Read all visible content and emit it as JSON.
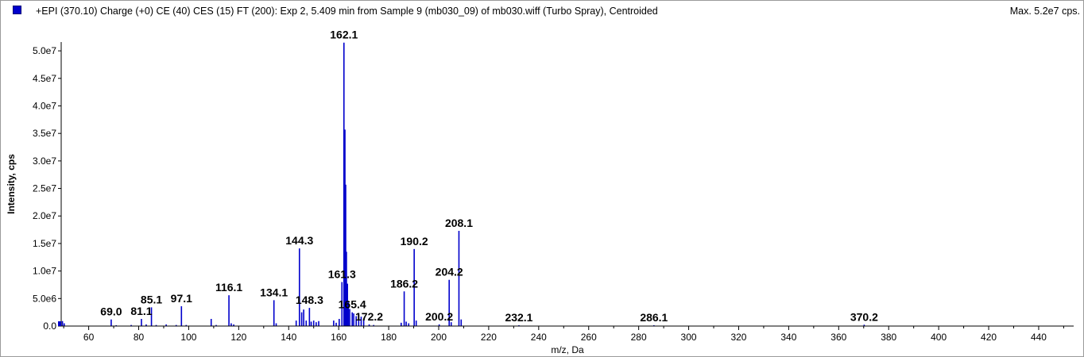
{
  "header": {
    "title": "+EPI (370.10) Charge (+0) CE (40) CES (15) FT (200): Exp 2, 5.409 min from Sample 9 (mb030_09) of mb030.wiff (Turbo Spray), Centroided",
    "max_label": "Max. 5.2e7 cps."
  },
  "colors": {
    "series": "#0000cc",
    "axis": "#000000"
  },
  "chart_data": {
    "type": "bar",
    "xlabel": "m/z, Da",
    "ylabel": "Intensity, cps",
    "xlim": [
      49,
      454
    ],
    "ylim": [
      0,
      51600000
    ],
    "x_ticks": [
      60,
      80,
      100,
      120,
      140,
      160,
      180,
      200,
      220,
      240,
      260,
      280,
      300,
      320,
      340,
      360,
      380,
      400,
      420,
      440
    ],
    "y_ticks": [
      {
        "value": 0,
        "label": "0.0"
      },
      {
        "value": 5000000,
        "label": "5.0e6"
      },
      {
        "value": 10000000,
        "label": "1.0e7"
      },
      {
        "value": 15000000,
        "label": "1.5e7"
      },
      {
        "value": 20000000,
        "label": "2.0e7"
      },
      {
        "value": 25000000,
        "label": "2.5e7"
      },
      {
        "value": 30000000,
        "label": "3.0e7"
      },
      {
        "value": 35000000,
        "label": "3.5e7"
      },
      {
        "value": 40000000,
        "label": "4.0e7"
      },
      {
        "value": 45000000,
        "label": "4.5e7"
      },
      {
        "value": 50000000,
        "label": "5.0e7"
      }
    ],
    "peaks": [
      {
        "mz": 49.5,
        "intensity": 900000
      },
      {
        "mz": 50.2,
        "intensity": 500000
      },
      {
        "mz": 69.0,
        "intensity": 1200000
      },
      {
        "mz": 71.0,
        "intensity": 150000
      },
      {
        "mz": 77.0,
        "intensity": 200000
      },
      {
        "mz": 81.1,
        "intensity": 1300000
      },
      {
        "mz": 83.0,
        "intensity": 300000
      },
      {
        "mz": 85.1,
        "intensity": 3400000
      },
      {
        "mz": 87.0,
        "intensity": 200000
      },
      {
        "mz": 91.0,
        "intensity": 300000
      },
      {
        "mz": 95.0,
        "intensity": 200000
      },
      {
        "mz": 97.1,
        "intensity": 3600000
      },
      {
        "mz": 99.0,
        "intensity": 200000
      },
      {
        "mz": 109.0,
        "intensity": 1300000
      },
      {
        "mz": 111.0,
        "intensity": 200000
      },
      {
        "mz": 116.1,
        "intensity": 5600000
      },
      {
        "mz": 117.0,
        "intensity": 500000
      },
      {
        "mz": 118.0,
        "intensity": 300000
      },
      {
        "mz": 134.1,
        "intensity": 4700000
      },
      {
        "mz": 135.0,
        "intensity": 500000
      },
      {
        "mz": 143.0,
        "intensity": 1000000
      },
      {
        "mz": 144.3,
        "intensity": 14100000
      },
      {
        "mz": 145.2,
        "intensity": 2500000
      },
      {
        "mz": 146.0,
        "intensity": 3000000
      },
      {
        "mz": 147.0,
        "intensity": 1000000
      },
      {
        "mz": 148.3,
        "intensity": 3300000
      },
      {
        "mz": 149.0,
        "intensity": 800000
      },
      {
        "mz": 150.0,
        "intensity": 1000000
      },
      {
        "mz": 151.0,
        "intensity": 700000
      },
      {
        "mz": 152.0,
        "intensity": 900000
      },
      {
        "mz": 158.0,
        "intensity": 1000000
      },
      {
        "mz": 159.0,
        "intensity": 600000
      },
      {
        "mz": 160.2,
        "intensity": 1300000
      },
      {
        "mz": 161.3,
        "intensity": 8000000
      },
      {
        "mz": 162.1,
        "intensity": 51500000
      },
      {
        "mz": 162.5,
        "intensity": 35700000
      },
      {
        "mz": 162.8,
        "intensity": 25700000
      },
      {
        "mz": 163.1,
        "intensity": 13500000
      },
      {
        "mz": 163.5,
        "intensity": 7700000
      },
      {
        "mz": 163.9,
        "intensity": 4300000
      },
      {
        "mz": 164.4,
        "intensity": 3100000
      },
      {
        "mz": 165.4,
        "intensity": 2500000
      },
      {
        "mz": 166.0,
        "intensity": 2300000
      },
      {
        "mz": 167.0,
        "intensity": 1800000
      },
      {
        "mz": 168.0,
        "intensity": 2000000
      },
      {
        "mz": 169.0,
        "intensity": 1700000
      },
      {
        "mz": 170.0,
        "intensity": 1200000
      },
      {
        "mz": 172.2,
        "intensity": 300000
      },
      {
        "mz": 174.0,
        "intensity": 200000
      },
      {
        "mz": 185.0,
        "intensity": 600000
      },
      {
        "mz": 186.2,
        "intensity": 6300000
      },
      {
        "mz": 187.0,
        "intensity": 800000
      },
      {
        "mz": 188.0,
        "intensity": 500000
      },
      {
        "mz": 190.2,
        "intensity": 14000000
      },
      {
        "mz": 191.0,
        "intensity": 1000000
      },
      {
        "mz": 200.2,
        "intensity": 300000
      },
      {
        "mz": 204.2,
        "intensity": 8400000
      },
      {
        "mz": 205.0,
        "intensity": 700000
      },
      {
        "mz": 208.1,
        "intensity": 17300000
      },
      {
        "mz": 209.0,
        "intensity": 1200000
      },
      {
        "mz": 232.1,
        "intensity": 150000
      },
      {
        "mz": 286.1,
        "intensity": 150000
      },
      {
        "mz": 370.2,
        "intensity": 250000
      }
    ],
    "peak_labels": [
      {
        "mz": 69.0,
        "text": "69.0"
      },
      {
        "mz": 81.1,
        "text": "81.1"
      },
      {
        "mz": 85.1,
        "text": "85.1"
      },
      {
        "mz": 97.1,
        "text": "97.1"
      },
      {
        "mz": 116.1,
        "text": "116.1"
      },
      {
        "mz": 134.1,
        "text": "134.1"
      },
      {
        "mz": 144.3,
        "text": "144.3"
      },
      {
        "mz": 148.3,
        "text": "148.3"
      },
      {
        "mz": 161.3,
        "text": "161.3"
      },
      {
        "mz": 162.1,
        "text": "162.1"
      },
      {
        "mz": 165.4,
        "text": "165.4"
      },
      {
        "mz": 172.2,
        "text": "172.2"
      },
      {
        "mz": 186.2,
        "text": "186.2"
      },
      {
        "mz": 190.2,
        "text": "190.2"
      },
      {
        "mz": 200.2,
        "text": "200.2"
      },
      {
        "mz": 204.2,
        "text": "204.2"
      },
      {
        "mz": 208.1,
        "text": "208.1"
      },
      {
        "mz": 232.1,
        "text": "232.1"
      },
      {
        "mz": 286.1,
        "text": "286.1"
      },
      {
        "mz": 370.2,
        "text": "370.2"
      }
    ]
  }
}
